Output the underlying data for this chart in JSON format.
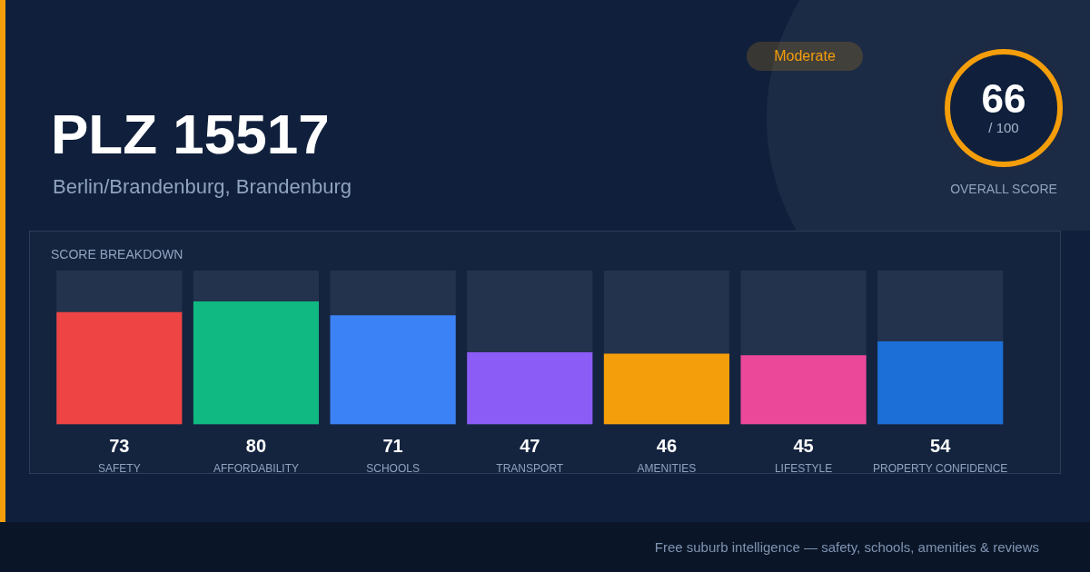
{
  "chart_data": {
    "type": "bar",
    "title": "PLZ 15517",
    "subtitle": "Berlin/Brandenburg, Brandenburg",
    "categories": [
      "SAFETY",
      "AFFORDABILITY",
      "SCHOOLS",
      "TRANSPORT",
      "AMENITIES",
      "LIFESTYLE",
      "PROPERTY CONFIDENCE"
    ],
    "values": [
      73,
      80,
      71,
      47,
      46,
      45,
      54
    ],
    "colors": [
      "#ef4444",
      "#10b981",
      "#3b82f6",
      "#8b5cf6",
      "#f59e0b",
      "#ec4899",
      "#1d6fd8"
    ],
    "ylim": [
      0,
      100
    ],
    "tick_labels": "x",
    "data_labels": true,
    "grid": false,
    "legend": false,
    "annotations": [
      "Moderate",
      "66",
      "/ 100",
      "OVERALL SCORE",
      "SCORE BREAKDOWN",
      "Free suburb intelligence — safety, schools, amenities & reviews"
    ]
  }
}
